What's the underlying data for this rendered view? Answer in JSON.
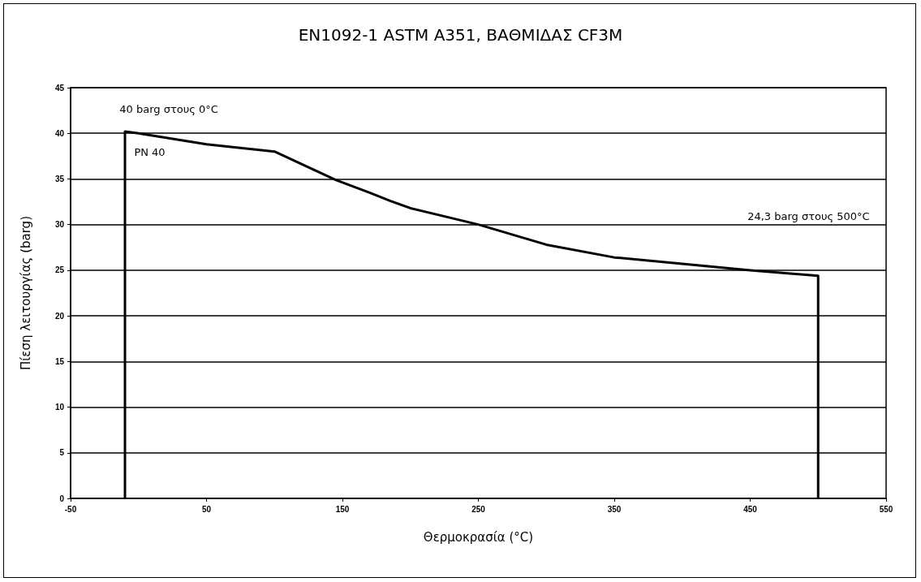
{
  "chart_data": {
    "type": "line",
    "title": "EN1092-1 ASTM A351, ΒΑΘΜΙΔΑΣ CF3M",
    "xlabel": "Θερμοκρασία (°C)",
    "ylabel": "Πίεση λειτουργίας (barg)",
    "x": [
      -10,
      -10,
      0,
      50,
      100,
      145,
      170,
      185,
      200,
      250,
      300,
      350,
      400,
      450,
      500,
      500
    ],
    "series": [
      {
        "color": "#000000",
        "values": [
          0,
          40.2,
          40,
          38.8,
          38,
          34.9,
          33.5,
          32.6,
          31.8,
          30,
          27.8,
          26.4,
          25.7,
          25,
          24.4,
          0
        ]
      }
    ],
    "xlim": [
      -50,
      550
    ],
    "xticks": [
      -50,
      50,
      150,
      250,
      350,
      450,
      550
    ],
    "ylim": [
      0,
      45
    ],
    "yticks": [
      0,
      5,
      10,
      15,
      20,
      25,
      30,
      35,
      40,
      45
    ],
    "annotations": [
      "40 barg στους 0°C",
      "PN 40",
      "24,3 barg στους 500°C"
    ],
    "grid": "y",
    "marker": "none",
    "line_style": "solid"
  }
}
